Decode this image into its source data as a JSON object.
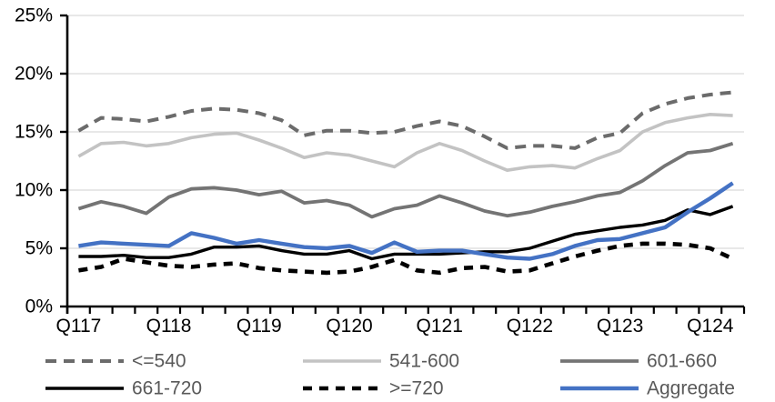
{
  "chart_data": {
    "type": "line",
    "title": "",
    "xlabel": "",
    "ylabel": "",
    "ylim": [
      0,
      25
    ],
    "y_tick_step": 5,
    "y_tick_labels": [
      "0%",
      "5%",
      "10%",
      "15%",
      "20%",
      "25%"
    ],
    "grid": "horizontal",
    "gridline_color": "#d9d9d9",
    "axis_color": "#000000",
    "axis_label_color": "#000000",
    "legend_text_color": "#595959",
    "legend_position": "bottom",
    "categories": [
      "2017Q1",
      "2017Q2",
      "2017Q3",
      "2017Q4",
      "2018Q1",
      "2018Q2",
      "2018Q3",
      "2018Q4",
      "2019Q1",
      "2019Q2",
      "2019Q3",
      "2019Q4",
      "2020Q1",
      "2020Q2",
      "2020Q3",
      "2020Q4",
      "2021Q1",
      "2021Q2",
      "2021Q3",
      "2021Q4",
      "2022Q1",
      "2022Q2",
      "2022Q3",
      "2022Q4",
      "2023Q1",
      "2023Q2",
      "2023Q3",
      "2023Q4",
      "2024Q1",
      "2024Q2"
    ],
    "x_axis_labels": [
      {
        "label": "Q117",
        "category_index": 0
      },
      {
        "label": "Q118",
        "category_index": 4
      },
      {
        "label": "Q119",
        "category_index": 8
      },
      {
        "label": "Q120",
        "category_index": 12
      },
      {
        "label": "Q121",
        "category_index": 16
      },
      {
        "label": "Q122",
        "category_index": 20
      },
      {
        "label": "Q123",
        "category_index": 24
      },
      {
        "label": "Q124",
        "category_index": 28
      }
    ],
    "series": [
      {
        "slug": "le-540",
        "name": "<=540",
        "color": "#6b6b6b",
        "dash": "12 8",
        "width": 4,
        "values": [
          15.1,
          16.2,
          16.1,
          15.9,
          16.3,
          16.8,
          17.0,
          16.9,
          16.6,
          16.0,
          14.7,
          15.1,
          15.1,
          14.9,
          15.0,
          15.5,
          15.9,
          15.5,
          14.6,
          13.6,
          13.8,
          13.8,
          13.6,
          14.5,
          14.9,
          16.6,
          17.4,
          17.9,
          18.2,
          18.4
        ]
      },
      {
        "slug": "541-600",
        "name": "541-600",
        "color": "#c3c3c3",
        "dash": "",
        "width": 3.6,
        "values": [
          12.9,
          14.0,
          14.1,
          13.8,
          14.0,
          14.5,
          14.8,
          14.9,
          14.3,
          13.6,
          12.8,
          13.2,
          13.0,
          12.5,
          12.0,
          13.2,
          14.0,
          13.4,
          12.5,
          11.7,
          12.0,
          12.1,
          11.9,
          12.7,
          13.4,
          15.0,
          15.8,
          16.2,
          16.5,
          16.4
        ]
      },
      {
        "slug": "601-660",
        "name": "601-660",
        "color": "#747474",
        "dash": "",
        "width": 3.8,
        "values": [
          8.4,
          9.0,
          8.6,
          8.0,
          9.4,
          10.1,
          10.2,
          10.0,
          9.6,
          9.9,
          8.9,
          9.1,
          8.7,
          7.7,
          8.4,
          8.7,
          9.5,
          8.9,
          8.2,
          7.8,
          8.1,
          8.6,
          9.0,
          9.5,
          9.8,
          10.8,
          12.1,
          13.2,
          13.4,
          14.0
        ]
      },
      {
        "slug": "661-720",
        "name": "661-720",
        "color": "#000000",
        "dash": "",
        "width": 3.4,
        "values": [
          4.3,
          4.3,
          4.4,
          4.2,
          4.2,
          4.5,
          5.1,
          5.1,
          5.2,
          4.8,
          4.5,
          4.5,
          4.8,
          4.1,
          4.5,
          4.5,
          4.5,
          4.6,
          4.7,
          4.7,
          5.0,
          5.6,
          6.2,
          6.5,
          6.8,
          7.0,
          7.4,
          8.3,
          7.9,
          8.6
        ]
      },
      {
        "slug": "ge-720",
        "name": ">=720",
        "color": "#000000",
        "dash": "10 8",
        "width": 4.6,
        "values": [
          3.1,
          3.4,
          4.1,
          3.8,
          3.5,
          3.4,
          3.6,
          3.7,
          3.3,
          3.1,
          3.0,
          2.9,
          3.0,
          3.4,
          4.0,
          3.1,
          2.9,
          3.3,
          3.4,
          3.0,
          3.1,
          3.7,
          4.3,
          4.8,
          5.2,
          5.4,
          5.4,
          5.3,
          5.0,
          4.1
        ]
      },
      {
        "slug": "aggregate",
        "name": "Aggregate",
        "color": "#4472c4",
        "dash": "",
        "width": 4.4,
        "values": [
          5.2,
          5.5,
          5.4,
          5.3,
          5.2,
          6.3,
          5.9,
          5.4,
          5.7,
          5.4,
          5.1,
          5.0,
          5.2,
          4.6,
          5.5,
          4.7,
          4.8,
          4.8,
          4.5,
          4.2,
          4.1,
          4.5,
          5.2,
          5.7,
          5.8,
          6.3,
          6.8,
          8.1,
          9.3,
          10.6
        ]
      }
    ],
    "legend_order": [
      "<=540",
      "541-600",
      "601-660",
      "661-720",
      ">=720",
      "Aggregate"
    ]
  }
}
